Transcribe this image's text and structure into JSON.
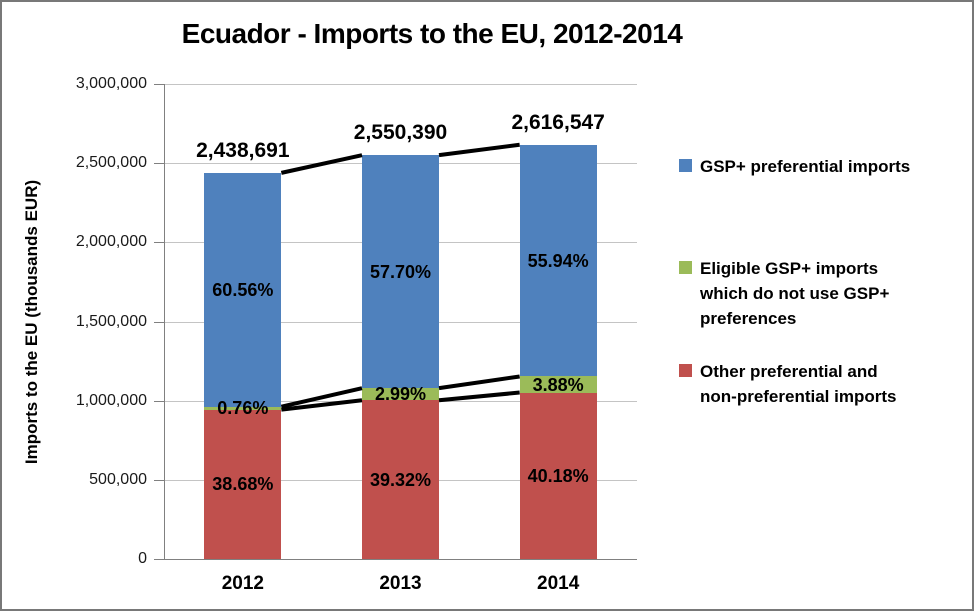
{
  "title": "Ecuador - Imports to the EU, 2012-2014",
  "y_axis": {
    "title": "Imports to the EU (thousands EUR)",
    "tick_labels": [
      "3,000,000",
      "2,500,000",
      "2,000,000",
      "1,500,000",
      "1,000,000",
      "500,000",
      "0"
    ],
    "min": 0,
    "max": 3000000,
    "step": 500000
  },
  "x_axis": {
    "categories": [
      "2012",
      "2013",
      "2014"
    ]
  },
  "legend": {
    "position": "right",
    "items": [
      {
        "label": "GSP+ preferential imports",
        "color": "#4F81BD"
      },
      {
        "label": "Eligible GSP+ imports which do not use GSP+ preferences",
        "color": "#9BBB59"
      },
      {
        "label": "Other preferential and non-preferential imports",
        "color": "#C0504D"
      }
    ]
  },
  "colors": {
    "blue": "#4F81BD",
    "green": "#9BBB59",
    "red": "#C0504D",
    "series_line": "#000000",
    "gridline": "#C4C4C4",
    "axis": "#808080"
  },
  "chart_data": {
    "type": "bar",
    "stacked": true,
    "title": "Ecuador - Imports to the EU, 2012-2014",
    "xlabel": "",
    "ylabel": "Imports to the EU (thousands EUR)",
    "ylim": [
      0,
      3000000
    ],
    "grid": true,
    "legend_position": "right",
    "series_lines": true,
    "categories": [
      "2012",
      "2013",
      "2014"
    ],
    "totals": [
      2438691,
      2550390,
      2616547
    ],
    "total_labels": [
      "2,438,691",
      "2,550,390",
      "2,616,547"
    ],
    "series": [
      {
        "name": "Other preferential and non-preferential imports",
        "key": "other-preferential",
        "color": "#C0504D",
        "percent": [
          38.68,
          39.32,
          40.18
        ],
        "percent_labels": [
          "38.68%",
          "39.32%",
          "40.18%"
        ]
      },
      {
        "name": "Eligible GSP+ imports which do not use GSP+ preferences",
        "key": "eligible-unused-gsp",
        "color": "#9BBB59",
        "percent": [
          0.76,
          2.99,
          3.88
        ],
        "percent_labels": [
          "0.76%",
          "2.99%",
          "3.88%"
        ]
      },
      {
        "name": "GSP+ preferential imports",
        "key": "gsp-preferential",
        "color": "#4F81BD",
        "percent": [
          60.56,
          57.7,
          55.94
        ],
        "percent_labels": [
          "60.56%",
          "57.70%",
          "55.94%"
        ]
      }
    ]
  }
}
